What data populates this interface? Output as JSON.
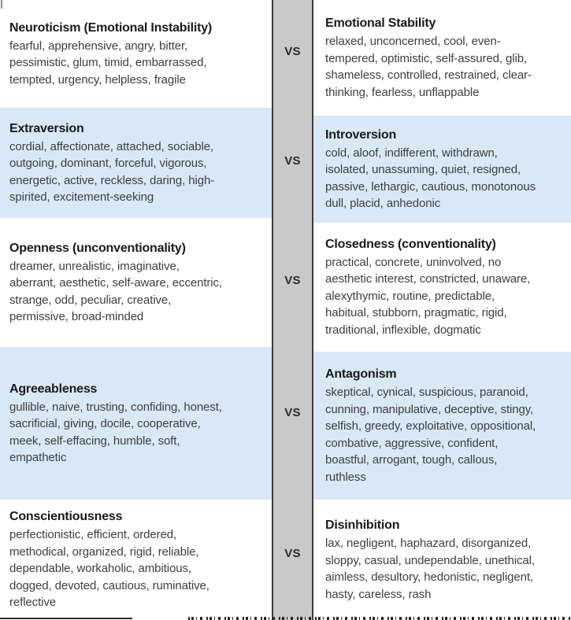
{
  "table": {
    "vs_label": "VS",
    "rows": [
      {
        "left": {
          "title": "Neuroticism (Emotional Instability)",
          "traits": [
            "fearful, apprehensive, angry, bitter,",
            "pessimistic, glum, timid, embarrassed,",
            "tempted, urgency, helpless, fragile"
          ]
        },
        "right": {
          "title": "Emotional Stability",
          "traits": [
            "relaxed, unconcerned, cool, even-",
            "tempered, optimistic, self-assured, glib,",
            "shameless, controlled, restrained, clear-",
            "thinking, fearless, unflappable"
          ]
        }
      },
      {
        "left": {
          "title": "Extraversion",
          "traits": [
            "cordial, affectionate, attached, sociable,",
            "outgoing, dominant, forceful, vigorous,",
            "energetic, active, reckless, daring, high-",
            "spirited, excitement-seeking"
          ]
        },
        "right": {
          "title": "Introversion",
          "traits": [
            "cold, aloof, indifferent, withdrawn,",
            "isolated, unassuming, quiet, resigned,",
            "passive, lethargic, cautious, monotonous",
            "dull, placid, anhedonic"
          ]
        }
      },
      {
        "left": {
          "title": "Openness (unconventionality)",
          "traits": [
            "dreamer, unrealistic, imaginative,",
            "aberrant, aesthetic, self-aware, eccentric,",
            "strange, odd, peculiar, creative,",
            "permissive, broad-minded"
          ]
        },
        "right": {
          "title": "Closedness (conventionality)",
          "traits": [
            "practical, concrete, uninvolved, no",
            "aesthetic interest, constricted, unaware,",
            "alexythymic, routine, predictable,",
            "habitual, stubborn, pragmatic, rigid,",
            "traditional, inflexible, dogmatic"
          ]
        }
      },
      {
        "left": {
          "title": "Agreeableness",
          "traits": [
            "gullible, naive, trusting, confiding, honest,",
            "sacrificial, giving, docile, cooperative,",
            "meek, self-effacing, humble, soft,",
            "empathetic"
          ]
        },
        "right": {
          "title": "Antagonism",
          "traits": [
            "skeptical, cynical, suspicious, paranoid,",
            "cunning, manipulative, deceptive, stingy,",
            "selfish, greedy, exploitative, oppositional,",
            "combative, aggressive, confident,",
            "boastful, arrogant, tough, callous,",
            "ruthless"
          ]
        }
      },
      {
        "left": {
          "title": "Conscientiousness",
          "traits": [
            "perfectionistic, efficient, ordered,",
            "methodical, organized, rigid, reliable,",
            "dependable, workaholic, ambitious,",
            "dogged, devoted, cautious, ruminative,",
            "reflective"
          ]
        },
        "right": {
          "title": "Disinhibition",
          "traits": [
            "lax, negligent, haphazard, disorganized,",
            "sloppy, casual, undependable, unethical,",
            "aimless, desultory, hedonistic, negligent,",
            "hasty, careless, rash"
          ]
        }
      }
    ]
  },
  "colors": {
    "row_alt_bg": "#d9e8f6",
    "band_fill": "#c9c9c9",
    "band_border": "#3d3d3d",
    "title_text": "#1a1a1a",
    "body_text": "#3e3e3e"
  }
}
